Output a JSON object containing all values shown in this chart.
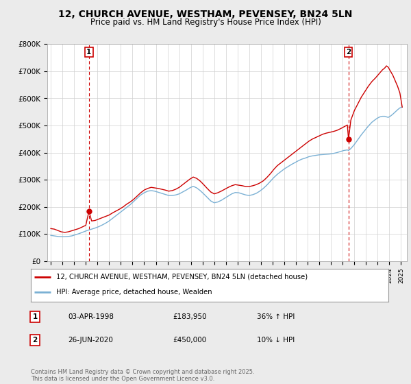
{
  "title": "12, CHURCH AVENUE, WESTHAM, PEVENSEY, BN24 5LN",
  "subtitle": "Price paid vs. HM Land Registry's House Price Index (HPI)",
  "ylim": [
    0,
    800000
  ],
  "yticks": [
    0,
    100000,
    200000,
    300000,
    400000,
    500000,
    600000,
    700000,
    800000
  ],
  "ytick_labels": [
    "£0",
    "£100K",
    "£200K",
    "£300K",
    "£400K",
    "£500K",
    "£600K",
    "£700K",
    "£800K"
  ],
  "xlim_start": 1994.7,
  "xlim_end": 2025.5,
  "red_line_color": "#cc0000",
  "blue_line_color": "#7ab0d4",
  "marker1_x": 1998.27,
  "marker1_y": 183950,
  "marker2_x": 2020.5,
  "marker2_y": 450000,
  "marker1_label": "1",
  "marker2_label": "2",
  "vline_color": "#cc0000",
  "legend_line1": "12, CHURCH AVENUE, WESTHAM, PEVENSEY, BN24 5LN (detached house)",
  "legend_line2": "HPI: Average price, detached house, Wealden",
  "annotation1_num": "1",
  "annotation1_date": "03-APR-1998",
  "annotation1_price": "£183,950",
  "annotation1_hpi": "36% ↑ HPI",
  "annotation2_num": "2",
  "annotation2_date": "26-JUN-2020",
  "annotation2_price": "£450,000",
  "annotation2_hpi": "10% ↓ HPI",
  "footer": "Contains HM Land Registry data © Crown copyright and database right 2025.\nThis data is licensed under the Open Government Licence v3.0.",
  "bg_color": "#ebebeb",
  "plot_bg_color": "#ffffff",
  "title_fontsize": 10,
  "subtitle_fontsize": 8.5,
  "red_prices": [
    [
      1995.0,
      120000
    ],
    [
      1995.3,
      118000
    ],
    [
      1995.6,
      113000
    ],
    [
      1995.9,
      108000
    ],
    [
      1996.2,
      106000
    ],
    [
      1996.5,
      108000
    ],
    [
      1996.8,
      112000
    ],
    [
      1997.1,
      116000
    ],
    [
      1997.4,
      120000
    ],
    [
      1997.7,
      126000
    ],
    [
      1998.0,
      132000
    ],
    [
      1998.27,
      183950
    ],
    [
      1998.5,
      148000
    ],
    [
      1998.8,
      150000
    ],
    [
      1999.1,
      155000
    ],
    [
      1999.4,
      160000
    ],
    [
      1999.7,
      165000
    ],
    [
      2000.0,
      170000
    ],
    [
      2000.3,
      178000
    ],
    [
      2000.6,
      185000
    ],
    [
      2000.9,
      192000
    ],
    [
      2001.2,
      200000
    ],
    [
      2001.5,
      210000
    ],
    [
      2001.8,
      218000
    ],
    [
      2002.1,
      228000
    ],
    [
      2002.4,
      240000
    ],
    [
      2002.7,
      252000
    ],
    [
      2003.0,
      262000
    ],
    [
      2003.3,
      268000
    ],
    [
      2003.6,
      272000
    ],
    [
      2003.9,
      270000
    ],
    [
      2004.2,
      268000
    ],
    [
      2004.5,
      265000
    ],
    [
      2004.8,
      262000
    ],
    [
      2005.1,
      258000
    ],
    [
      2005.4,
      260000
    ],
    [
      2005.7,
      265000
    ],
    [
      2006.0,
      272000
    ],
    [
      2006.3,
      282000
    ],
    [
      2006.6,
      292000
    ],
    [
      2006.9,
      302000
    ],
    [
      2007.2,
      310000
    ],
    [
      2007.5,
      305000
    ],
    [
      2007.8,
      295000
    ],
    [
      2008.1,
      282000
    ],
    [
      2008.4,
      268000
    ],
    [
      2008.7,
      255000
    ],
    [
      2009.0,
      248000
    ],
    [
      2009.3,
      252000
    ],
    [
      2009.6,
      258000
    ],
    [
      2009.9,
      265000
    ],
    [
      2010.2,
      272000
    ],
    [
      2010.5,
      278000
    ],
    [
      2010.8,
      282000
    ],
    [
      2011.1,
      280000
    ],
    [
      2011.4,
      278000
    ],
    [
      2011.7,
      275000
    ],
    [
      2012.0,
      275000
    ],
    [
      2012.3,
      278000
    ],
    [
      2012.6,
      282000
    ],
    [
      2012.9,
      288000
    ],
    [
      2013.2,
      296000
    ],
    [
      2013.5,
      308000
    ],
    [
      2013.8,
      322000
    ],
    [
      2014.1,
      338000
    ],
    [
      2014.4,
      352000
    ],
    [
      2014.7,
      362000
    ],
    [
      2015.0,
      372000
    ],
    [
      2015.3,
      382000
    ],
    [
      2015.6,
      392000
    ],
    [
      2015.9,
      402000
    ],
    [
      2016.2,
      412000
    ],
    [
      2016.5,
      422000
    ],
    [
      2016.8,
      432000
    ],
    [
      2017.1,
      442000
    ],
    [
      2017.4,
      450000
    ],
    [
      2017.7,
      456000
    ],
    [
      2018.0,
      462000
    ],
    [
      2018.3,
      468000
    ],
    [
      2018.6,
      472000
    ],
    [
      2018.9,
      475000
    ],
    [
      2019.2,
      478000
    ],
    [
      2019.5,
      482000
    ],
    [
      2019.8,
      488000
    ],
    [
      2020.1,
      495000
    ],
    [
      2020.4,
      502000
    ],
    [
      2020.5,
      450000
    ],
    [
      2020.7,
      520000
    ],
    [
      2021.0,
      555000
    ],
    [
      2021.3,
      580000
    ],
    [
      2021.6,
      605000
    ],
    [
      2021.9,
      625000
    ],
    [
      2022.2,
      645000
    ],
    [
      2022.5,
      662000
    ],
    [
      2022.8,
      675000
    ],
    [
      2023.0,
      685000
    ],
    [
      2023.2,
      695000
    ],
    [
      2023.4,
      705000
    ],
    [
      2023.6,
      712000
    ],
    [
      2023.75,
      720000
    ],
    [
      2023.9,
      715000
    ],
    [
      2024.1,
      700000
    ],
    [
      2024.3,
      685000
    ],
    [
      2024.5,
      665000
    ],
    [
      2024.7,
      645000
    ],
    [
      2024.9,
      620000
    ],
    [
      2025.1,
      568000
    ]
  ],
  "blue_prices": [
    [
      1995.0,
      95000
    ],
    [
      1995.3,
      93000
    ],
    [
      1995.6,
      91000
    ],
    [
      1995.9,
      90000
    ],
    [
      1996.2,
      90000
    ],
    [
      1996.5,
      91000
    ],
    [
      1996.8,
      93000
    ],
    [
      1997.1,
      97000
    ],
    [
      1997.4,
      101000
    ],
    [
      1997.7,
      106000
    ],
    [
      1998.0,
      111000
    ],
    [
      1998.27,
      115000
    ],
    [
      1998.5,
      118000
    ],
    [
      1998.8,
      122000
    ],
    [
      1999.1,
      127000
    ],
    [
      1999.4,
      133000
    ],
    [
      1999.7,
      140000
    ],
    [
      2000.0,
      148000
    ],
    [
      2000.3,
      158000
    ],
    [
      2000.6,
      168000
    ],
    [
      2000.9,
      178000
    ],
    [
      2001.2,
      188000
    ],
    [
      2001.5,
      198000
    ],
    [
      2001.8,
      208000
    ],
    [
      2002.1,
      220000
    ],
    [
      2002.4,
      232000
    ],
    [
      2002.7,
      244000
    ],
    [
      2003.0,
      252000
    ],
    [
      2003.3,
      258000
    ],
    [
      2003.6,
      260000
    ],
    [
      2003.9,
      258000
    ],
    [
      2004.2,
      254000
    ],
    [
      2004.5,
      250000
    ],
    [
      2004.8,
      246000
    ],
    [
      2005.1,
      242000
    ],
    [
      2005.4,
      242000
    ],
    [
      2005.7,
      244000
    ],
    [
      2006.0,
      248000
    ],
    [
      2006.3,
      255000
    ],
    [
      2006.6,
      262000
    ],
    [
      2006.9,
      270000
    ],
    [
      2007.2,
      276000
    ],
    [
      2007.5,
      270000
    ],
    [
      2007.8,
      260000
    ],
    [
      2008.1,
      248000
    ],
    [
      2008.4,
      235000
    ],
    [
      2008.7,
      222000
    ],
    [
      2009.0,
      215000
    ],
    [
      2009.3,
      218000
    ],
    [
      2009.6,
      224000
    ],
    [
      2009.9,
      232000
    ],
    [
      2010.2,
      240000
    ],
    [
      2010.5,
      248000
    ],
    [
      2010.8,
      253000
    ],
    [
      2011.1,
      252000
    ],
    [
      2011.4,
      248000
    ],
    [
      2011.7,
      244000
    ],
    [
      2012.0,
      242000
    ],
    [
      2012.3,
      245000
    ],
    [
      2012.6,
      250000
    ],
    [
      2012.9,
      258000
    ],
    [
      2013.2,
      268000
    ],
    [
      2013.5,
      280000
    ],
    [
      2013.8,
      294000
    ],
    [
      2014.1,
      308000
    ],
    [
      2014.4,
      320000
    ],
    [
      2014.7,
      330000
    ],
    [
      2015.0,
      340000
    ],
    [
      2015.3,
      348000
    ],
    [
      2015.6,
      356000
    ],
    [
      2015.9,
      363000
    ],
    [
      2016.2,
      370000
    ],
    [
      2016.5,
      376000
    ],
    [
      2016.8,
      380000
    ],
    [
      2017.1,
      385000
    ],
    [
      2017.4,
      388000
    ],
    [
      2017.7,
      390000
    ],
    [
      2018.0,
      392000
    ],
    [
      2018.3,
      393000
    ],
    [
      2018.6,
      394000
    ],
    [
      2018.9,
      395000
    ],
    [
      2019.2,
      397000
    ],
    [
      2019.5,
      400000
    ],
    [
      2019.8,
      404000
    ],
    [
      2020.1,
      408000
    ],
    [
      2020.4,
      410000
    ],
    [
      2020.5,
      408000
    ],
    [
      2020.7,
      415000
    ],
    [
      2021.0,
      430000
    ],
    [
      2021.3,
      448000
    ],
    [
      2021.6,
      466000
    ],
    [
      2021.9,
      482000
    ],
    [
      2022.2,
      498000
    ],
    [
      2022.5,
      512000
    ],
    [
      2022.8,
      522000
    ],
    [
      2023.0,
      528000
    ],
    [
      2023.2,
      532000
    ],
    [
      2023.4,
      534000
    ],
    [
      2023.6,
      534000
    ],
    [
      2023.75,
      532000
    ],
    [
      2023.9,
      530000
    ],
    [
      2024.1,
      535000
    ],
    [
      2024.3,
      542000
    ],
    [
      2024.5,
      550000
    ],
    [
      2024.7,
      558000
    ],
    [
      2024.9,
      565000
    ],
    [
      2025.1,
      568000
    ]
  ]
}
